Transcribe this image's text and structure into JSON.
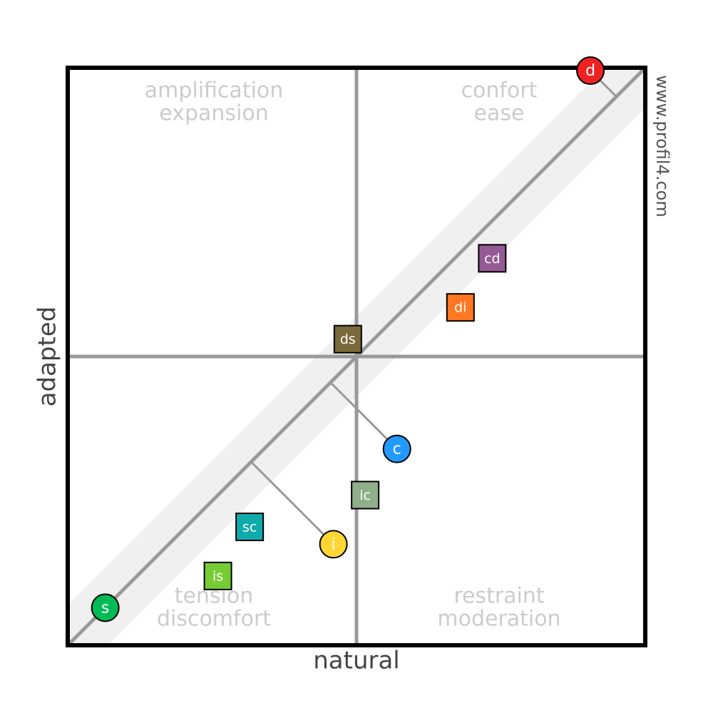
{
  "chart_data": {
    "type": "scatter",
    "xlabel": "natural",
    "ylabel": "adapted",
    "watermark": "www.profil4.com",
    "xlim": [
      -100,
      100
    ],
    "ylim": [
      -100,
      100
    ],
    "quadrants": [
      {
        "lines": [
          "amplification",
          "expansion"
        ]
      },
      {
        "lines": [
          "confort",
          "ease"
        ]
      },
      {
        "lines": [
          "tension",
          "discomfort"
        ]
      },
      {
        "lines": [
          "restraint",
          "moderation"
        ]
      }
    ],
    "points": [
      {
        "label": "d",
        "shape": "circle",
        "color": "#ee2222",
        "x": 81,
        "y": 99
      },
      {
        "label": "s",
        "shape": "circle",
        "color": "#00bb55",
        "x": -87,
        "y": -87
      },
      {
        "label": "c",
        "shape": "circle",
        "color": "#2299ff",
        "x": 14,
        "y": -32
      },
      {
        "label": "i",
        "shape": "circle",
        "color": "#ffd633",
        "x": -8,
        "y": -65
      },
      {
        "label": "cd",
        "shape": "square",
        "color": "#955a95",
        "x": 47,
        "y": 34
      },
      {
        "label": "di",
        "shape": "square",
        "color": "#ff7722",
        "x": 36,
        "y": 17
      },
      {
        "label": "ds",
        "shape": "square",
        "color": "#7a6a3a",
        "x": -3,
        "y": 6
      },
      {
        "label": "ic",
        "shape": "square",
        "color": "#8fae8a",
        "x": 3,
        "y": -48
      },
      {
        "label": "sc",
        "shape": "square",
        "color": "#11aaaa",
        "x": -37,
        "y": -59
      },
      {
        "label": "is",
        "shape": "square",
        "color": "#77cc33",
        "x": -48,
        "y": -76
      }
    ]
  }
}
